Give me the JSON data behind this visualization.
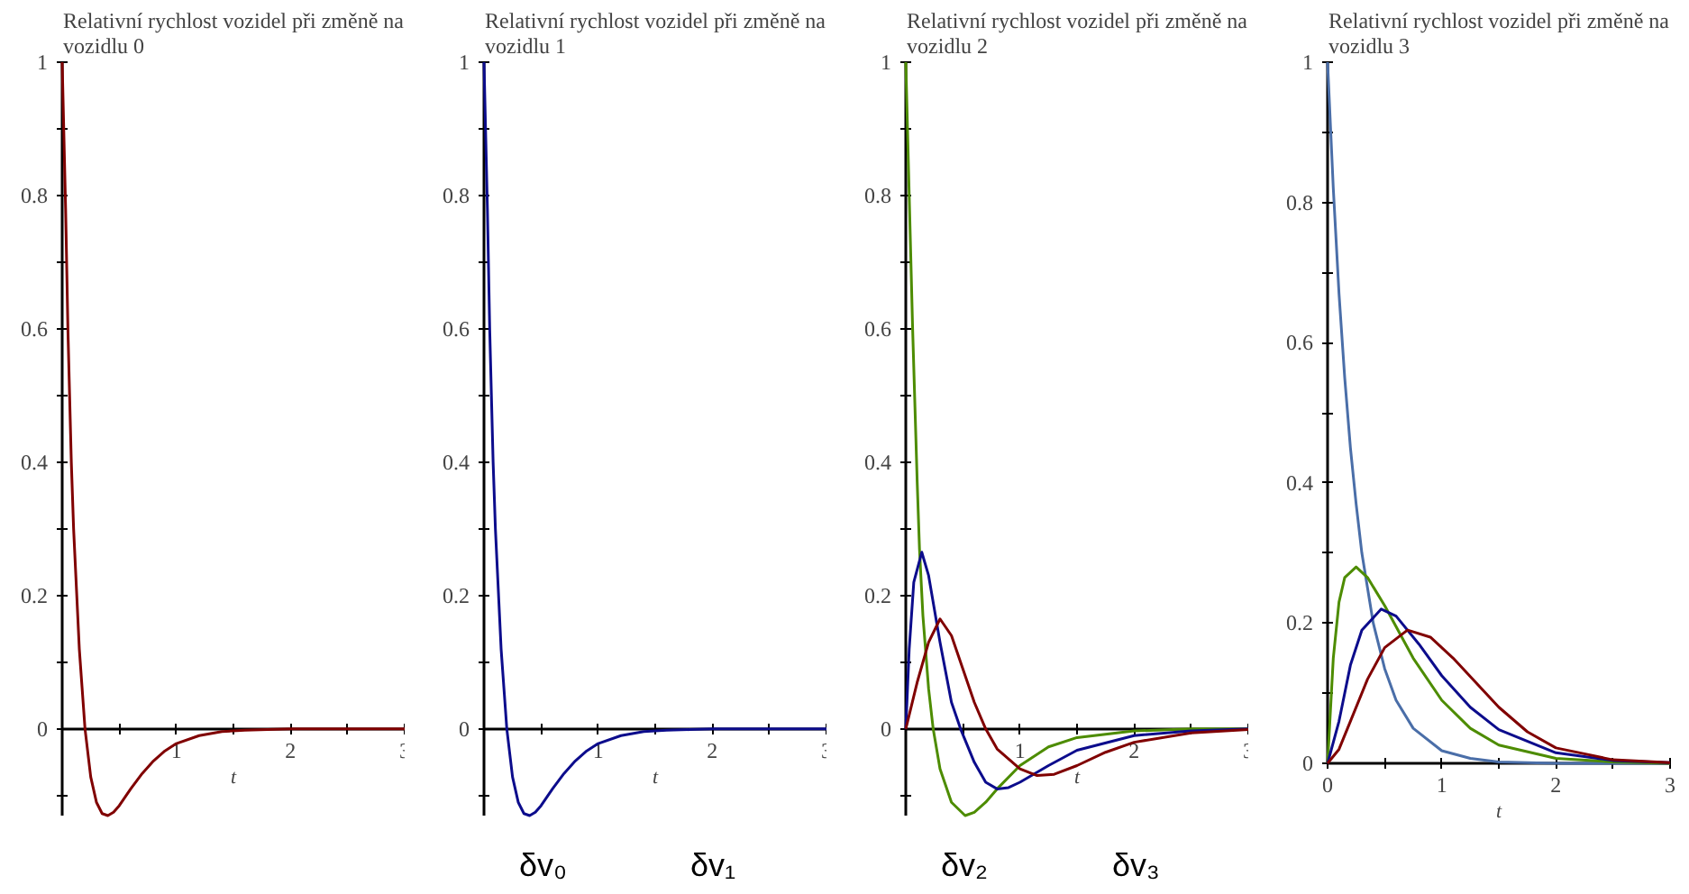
{
  "chart_data": [
    {
      "type": "line",
      "title": "Relativní rychlost vozidel při změně na vozidlu 0",
      "xlabel": "t",
      "xlim": [
        0,
        3
      ],
      "ylim": [
        -0.13,
        1
      ],
      "xticks": [
        {
          "value": 0.5,
          "label": null
        },
        1,
        {
          "value": 1.5,
          "label": null
        },
        2,
        {
          "value": 2.5,
          "label": null
        },
        3
      ],
      "yticks": [
        {
          "value": -0.1,
          "label": null
        },
        0,
        {
          "value": 0.1,
          "label": null
        },
        0.2,
        {
          "value": 0.3,
          "label": null
        },
        0.4,
        {
          "value": 0.5,
          "label": null
        },
        0.6,
        {
          "value": 0.7,
          "label": null
        },
        0.8,
        {
          "value": 0.9,
          "label": null
        },
        1
      ],
      "series": [
        {
          "color": "#800000",
          "x": [
            0,
            0.03,
            0.05,
            0.08,
            0.1,
            0.15,
            0.2,
            0.25,
            0.3,
            0.35,
            0.4,
            0.45,
            0.5,
            0.6,
            0.7,
            0.8,
            0.9,
            1.0,
            1.2,
            1.4,
            1.6,
            1.8,
            2.0,
            2.5,
            3.0
          ],
          "values": [
            1,
            0.78,
            0.6,
            0.4,
            0.3,
            0.12,
            0,
            -0.072,
            -0.11,
            -0.127,
            -0.13,
            -0.125,
            -0.115,
            -0.09,
            -0.067,
            -0.048,
            -0.033,
            -0.022,
            -0.01,
            -0.004,
            -0.002,
            -0.001,
            0,
            0,
            0
          ]
        }
      ]
    },
    {
      "type": "line",
      "title": "Relativní rychlost vozidel při změně na vozidlu 1",
      "xlabel": "t",
      "xlim": [
        0,
        3
      ],
      "ylim": [
        -0.13,
        1
      ],
      "xticks": [
        {
          "value": 0.5,
          "label": null
        },
        1,
        {
          "value": 1.5,
          "label": null
        },
        2,
        {
          "value": 2.5,
          "label": null
        },
        3
      ],
      "yticks": [
        {
          "value": -0.1,
          "label": null
        },
        0,
        {
          "value": 0.1,
          "label": null
        },
        0.2,
        {
          "value": 0.3,
          "label": null
        },
        0.4,
        {
          "value": 0.5,
          "label": null
        },
        0.6,
        {
          "value": 0.7,
          "label": null
        },
        0.8,
        {
          "value": 0.9,
          "label": null
        },
        1
      ],
      "series": [
        {
          "color": "#0c0c8c",
          "x": [
            0,
            0.03,
            0.05,
            0.08,
            0.1,
            0.15,
            0.2,
            0.25,
            0.3,
            0.35,
            0.4,
            0.45,
            0.5,
            0.6,
            0.7,
            0.8,
            0.9,
            1.0,
            1.2,
            1.4,
            1.6,
            1.8,
            2.0,
            2.5,
            3.0
          ],
          "values": [
            1,
            0.78,
            0.6,
            0.4,
            0.3,
            0.12,
            0,
            -0.072,
            -0.11,
            -0.127,
            -0.13,
            -0.125,
            -0.115,
            -0.09,
            -0.067,
            -0.048,
            -0.033,
            -0.022,
            -0.01,
            -0.004,
            -0.002,
            -0.001,
            0,
            0,
            0
          ]
        }
      ],
      "annotations": [
        "δv₀",
        "δv₁"
      ]
    },
    {
      "type": "line",
      "title": "Relativní rychlost vozidel při změně na vozidlu 2",
      "xlabel": "t",
      "xlim": [
        0,
        3
      ],
      "ylim": [
        -0.13,
        1
      ],
      "xticks": [
        {
          "value": 0.5,
          "label": null
        },
        1,
        {
          "value": 1.5,
          "label": null
        },
        2,
        {
          "value": 2.5,
          "label": null
        },
        3
      ],
      "yticks": [
        {
          "value": -0.1,
          "label": null
        },
        0,
        {
          "value": 0.1,
          "label": null
        },
        0.2,
        {
          "value": 0.3,
          "label": null
        },
        0.4,
        {
          "value": 0.5,
          "label": null
        },
        0.6,
        {
          "value": 0.7,
          "label": null
        },
        0.8,
        {
          "value": 0.9,
          "label": null
        },
        1
      ],
      "series": [
        {
          "color": "#4d8c00",
          "x": [
            0,
            0.03,
            0.06,
            0.1,
            0.12,
            0.15,
            0.2,
            0.24,
            0.3,
            0.4,
            0.52,
            0.6,
            0.7,
            0.8,
            1.0,
            1.25,
            1.5,
            2.0,
            2.5,
            3.0
          ],
          "values": [
            1,
            0.8,
            0.6,
            0.37,
            0.27,
            0.17,
            0.06,
            0,
            -0.06,
            -0.11,
            -0.13,
            -0.125,
            -0.11,
            -0.09,
            -0.055,
            -0.027,
            -0.013,
            -0.003,
            0,
            0
          ]
        },
        {
          "color": "#0c0c8c",
          "x": [
            0,
            0.03,
            0.07,
            0.14,
            0.2,
            0.3,
            0.4,
            0.48,
            0.6,
            0.7,
            0.8,
            0.9,
            1.0,
            1.25,
            1.5,
            2.0,
            2.5,
            3.0
          ],
          "values": [
            0,
            0.12,
            0.22,
            0.265,
            0.23,
            0.13,
            0.04,
            0,
            -0.05,
            -0.08,
            -0.09,
            -0.088,
            -0.08,
            -0.055,
            -0.032,
            -0.01,
            -0.003,
            0
          ]
        },
        {
          "color": "#800000",
          "x": [
            0,
            0.1,
            0.2,
            0.3,
            0.4,
            0.5,
            0.6,
            0.7,
            0.8,
            1.0,
            1.15,
            1.3,
            1.5,
            1.75,
            2.0,
            2.5,
            3.0
          ],
          "values": [
            0,
            0.07,
            0.13,
            0.165,
            0.14,
            0.09,
            0.04,
            0,
            -0.03,
            -0.06,
            -0.07,
            -0.068,
            -0.055,
            -0.035,
            -0.02,
            -0.006,
            -0.001
          ]
        }
      ],
      "annotations": [
        "δv₂",
        "δv₃"
      ]
    },
    {
      "type": "line",
      "title": "Relativní rychlost vozidel při změně na vozidlu 3",
      "xlabel": "t",
      "xlim": [
        0,
        3
      ],
      "ylim": [
        0,
        1
      ],
      "xticks": [
        0,
        {
          "value": 0.5,
          "label": null
        },
        1,
        {
          "value": 1.5,
          "label": null
        },
        2,
        {
          "value": 2.5,
          "label": null
        },
        3
      ],
      "yticks": [
        0,
        {
          "value": 0.1,
          "label": null
        },
        0.2,
        {
          "value": 0.3,
          "label": null
        },
        0.4,
        {
          "value": 0.5,
          "label": null
        },
        0.6,
        {
          "value": 0.7,
          "label": null
        },
        0.8,
        {
          "value": 0.9,
          "label": null
        },
        1
      ],
      "series": [
        {
          "color": "#4a6ea8",
          "x": [
            0,
            0.05,
            0.1,
            0.15,
            0.2,
            0.25,
            0.3,
            0.4,
            0.5,
            0.6,
            0.75,
            1.0,
            1.25,
            1.5,
            2.0,
            3.0
          ],
          "values": [
            1,
            0.82,
            0.67,
            0.55,
            0.45,
            0.37,
            0.3,
            0.2,
            0.135,
            0.09,
            0.05,
            0.018,
            0.007,
            0.002,
            0,
            0
          ]
        },
        {
          "color": "#4d8c00",
          "x": [
            0,
            0.05,
            0.1,
            0.15,
            0.25,
            0.35,
            0.5,
            0.75,
            1.0,
            1.25,
            1.5,
            2.0,
            2.5,
            3.0
          ],
          "values": [
            0,
            0.15,
            0.23,
            0.265,
            0.28,
            0.265,
            0.225,
            0.15,
            0.09,
            0.05,
            0.026,
            0.007,
            0.002,
            0
          ]
        },
        {
          "color": "#0c0c8c",
          "x": [
            0,
            0.1,
            0.2,
            0.3,
            0.47,
            0.6,
            0.8,
            1.0,
            1.25,
            1.5,
            2.0,
            2.5,
            3.0
          ],
          "values": [
            0,
            0.06,
            0.14,
            0.19,
            0.22,
            0.21,
            0.17,
            0.125,
            0.08,
            0.048,
            0.015,
            0.004,
            0.001
          ]
        },
        {
          "color": "#800000",
          "x": [
            0,
            0.1,
            0.2,
            0.35,
            0.5,
            0.7,
            0.9,
            1.1,
            1.3,
            1.5,
            1.75,
            2.0,
            2.5,
            3.0
          ],
          "values": [
            0,
            0.02,
            0.06,
            0.12,
            0.165,
            0.19,
            0.18,
            0.15,
            0.115,
            0.08,
            0.045,
            0.022,
            0.005,
            0.001
          ]
        }
      ]
    }
  ]
}
